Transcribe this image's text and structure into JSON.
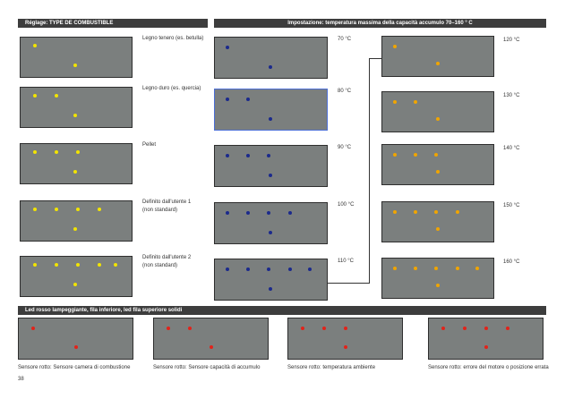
{
  "headers": {
    "fuel_type": "Réglage: TYPE DE COMBUSTIBLE",
    "max_temp": "Impostazione: temperatura massima della capacità accumulo 70–160 ° C",
    "errors": "Led rosso lampeggiante, fila inferiore, led fila superiore solidi"
  },
  "colors": {
    "panel": "#7b7f7e",
    "yellow_led": "#f2e400",
    "blue_led": "#1b2a8c",
    "orange_led": "#f0a500",
    "red_led": "#e2231a"
  },
  "fuel": [
    {
      "label": "Legno tenero (es. betulla)",
      "top_leds": 1,
      "bottom_leds": 1
    },
    {
      "label": "Legno duro (es. quercia)",
      "top_leds": 2,
      "bottom_leds": 1
    },
    {
      "label": "Pellet",
      "top_leds": 3,
      "bottom_leds": 1
    },
    {
      "label": "Definito dall'utente 1",
      "label2": "(non standard)",
      "top_leds": 4,
      "bottom_leds": 1
    },
    {
      "label": "Definito dall'utente 2",
      "label2": "(non standard)",
      "top_leds": 5,
      "bottom_leds": 1
    }
  ],
  "temp_low": [
    {
      "label": "70 °C",
      "top_leds": 1,
      "bottom_leds": 1
    },
    {
      "label": "80 °C",
      "top_leds": 2,
      "bottom_leds": 1
    },
    {
      "label": "90 °C",
      "top_leds": 3,
      "bottom_leds": 1
    },
    {
      "label": "100 °C",
      "top_leds": 4,
      "bottom_leds": 1
    },
    {
      "label": "110 °C",
      "top_leds": 5,
      "bottom_leds": 1
    }
  ],
  "temp_high": [
    {
      "label": "120 °C",
      "top_leds": 1,
      "bottom_leds": 1
    },
    {
      "label": "130 °C",
      "top_leds": 2,
      "bottom_leds": 1
    },
    {
      "label": "140 °C",
      "top_leds": 3,
      "bottom_leds": 1
    },
    {
      "label": "150 °C",
      "top_leds": 4,
      "bottom_leds": 1
    },
    {
      "label": "160 °C",
      "top_leds": 5,
      "bottom_leds": 1
    }
  ],
  "errors": [
    {
      "label": "Sensore rotto: Sensore camera di combustione",
      "top_leds": 1,
      "bottom_leds": 1
    },
    {
      "label": "Sensore rotto: Sensore capacità di accumulo",
      "top_leds": 2,
      "bottom_leds": 1
    },
    {
      "label": "Sensore rotto: temperatura ambiente",
      "top_leds": 3,
      "bottom_leds": 1
    },
    {
      "label": "Sensore rotto: errore del motore o posizione errata",
      "top_leds": 4,
      "bottom_leds": 1
    }
  ],
  "page_number": "38"
}
